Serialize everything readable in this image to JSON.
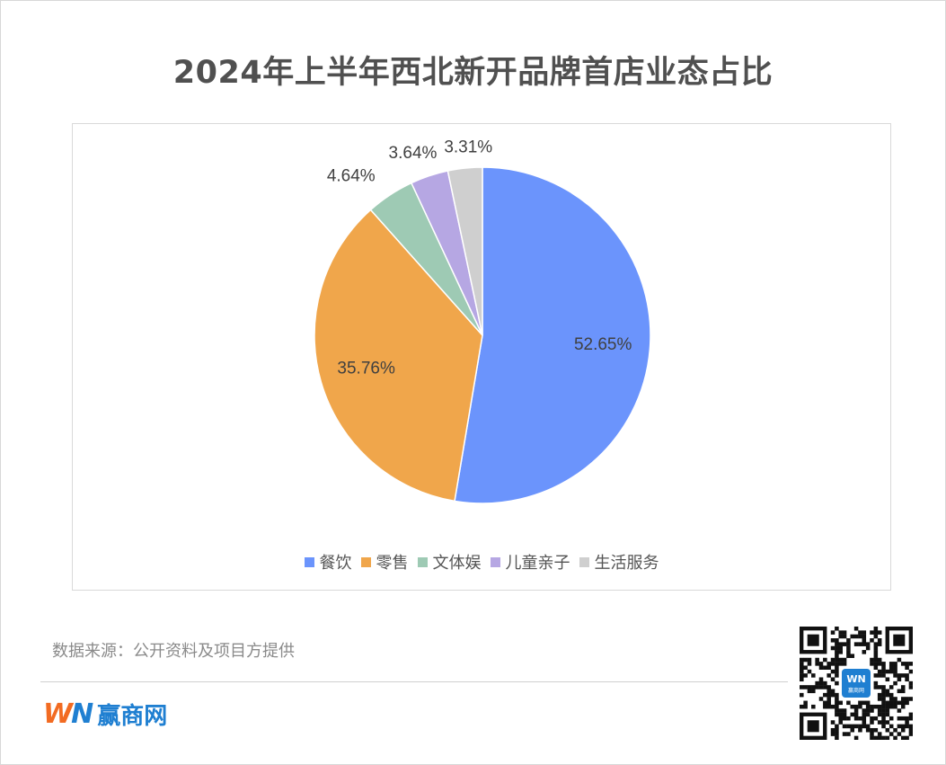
{
  "title": "2024年上半年西北新开品牌首店业态占比",
  "chart_data": {
    "type": "pie",
    "title": "2024年上半年西北新开品牌首店业态占比",
    "legend_position": "bottom",
    "categories": [
      "餐饮",
      "零售",
      "文体娱",
      "儿童亲子",
      "生活服务"
    ],
    "values": [
      52.65,
      35.76,
      4.64,
      3.64,
      3.31
    ],
    "labels": [
      "52.65%",
      "35.76%",
      "4.64%",
      "3.64%",
      "3.31%"
    ],
    "colors": [
      "#6b94fc",
      "#f0a64b",
      "#9ecab4",
      "#b6a7e3",
      "#cfcfcf"
    ]
  },
  "source": "数据来源：公开资料及项目方提供",
  "brand": {
    "mark_w": "W",
    "mark_n": "N",
    "name": "赢商网",
    "orange": "#f26b22",
    "blue": "#1f7fd1"
  },
  "qr": {
    "icon": "qr-code-icon",
    "center_label": "赢商网"
  }
}
